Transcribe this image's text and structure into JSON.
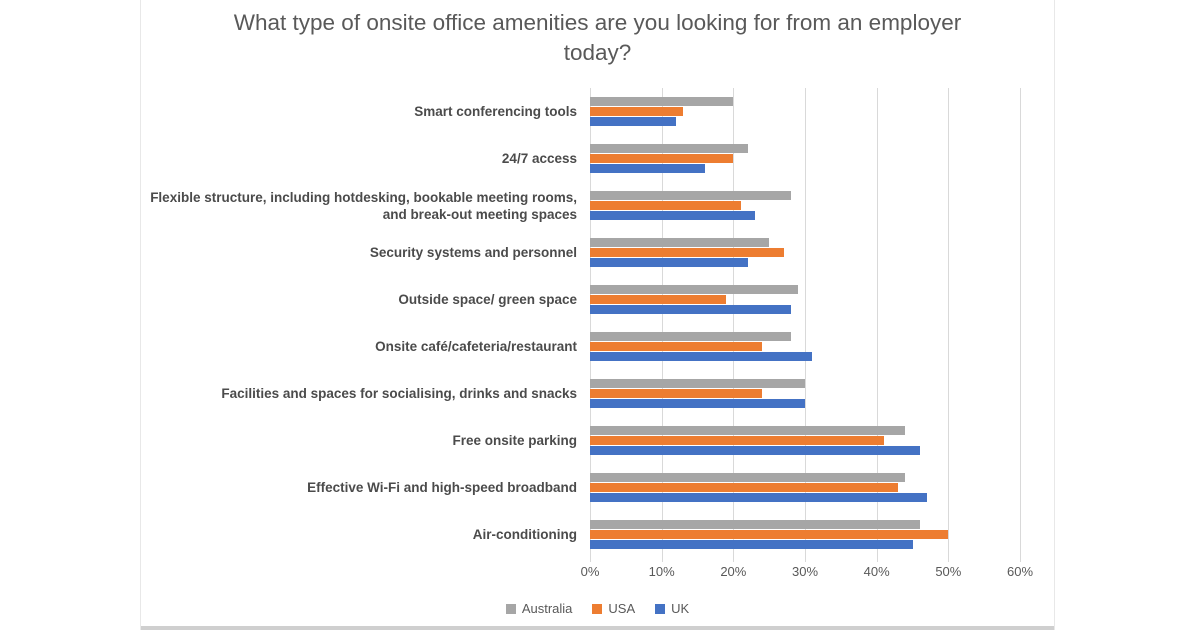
{
  "page": {
    "background_color": "#ffffff",
    "panel_border_color": "#e8e8e8",
    "bottom_strip_color": "#cfcfcf"
  },
  "chart_data": {
    "type": "bar",
    "orientation": "horizontal",
    "title": "What type of onsite office amenities are you looking for from an employer today?",
    "categories": [
      "Smart conferencing tools",
      "24/7 access",
      "Flexible structure, including hotdesking, bookable meeting rooms, and break-out meeting spaces",
      "Security systems and personnel",
      "Outside space/ green space",
      "Onsite café/cafeteria/restaurant",
      "Facilities and spaces for socialising, drinks and snacks",
      "Free onsite parking",
      "Effective Wi-Fi and high-speed broadband",
      "Air-conditioning"
    ],
    "series": [
      {
        "name": "Australia",
        "color": "#a6a6a6",
        "values": [
          20,
          22,
          28,
          25,
          29,
          28,
          30,
          44,
          44,
          46
        ]
      },
      {
        "name": "USA",
        "color": "#ed7d31",
        "values": [
          13,
          20,
          21,
          27,
          19,
          24,
          24,
          41,
          43,
          50
        ]
      },
      {
        "name": "UK",
        "color": "#4472c4",
        "values": [
          12,
          16,
          23,
          22,
          28,
          31,
          30,
          46,
          47,
          45
        ]
      }
    ],
    "xlabel": "",
    "ylabel": "",
    "xlim": [
      0,
      60
    ],
    "x_ticks": [
      "0%",
      "10%",
      "20%",
      "30%",
      "40%",
      "50%",
      "60%"
    ],
    "grid": true,
    "gridline_color": "#d9d9d9",
    "legend_position": "bottom",
    "units": "percent"
  }
}
